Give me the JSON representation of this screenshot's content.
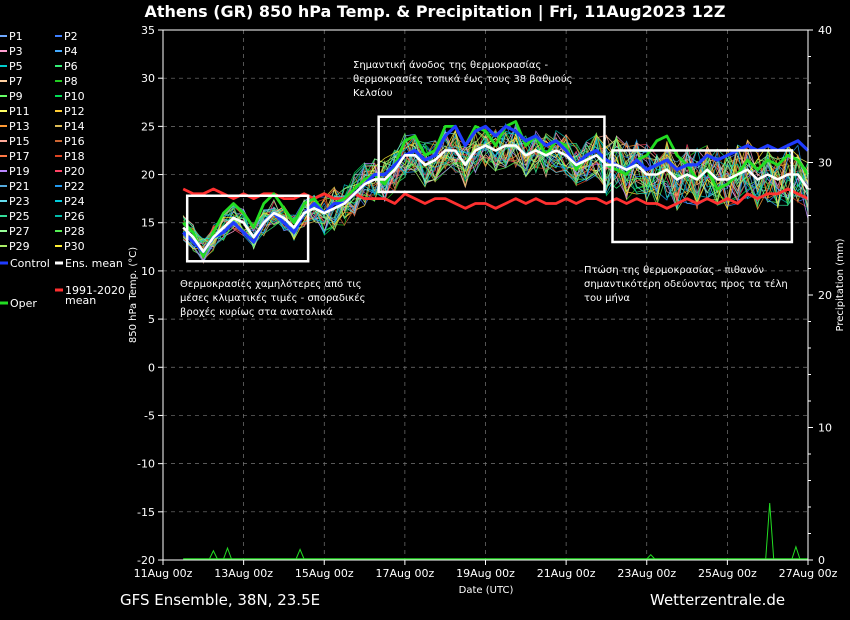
{
  "title": "Athens  (GR)  850 hPa Temp. & Precipitation | Fri, 11Aug2023 12Z",
  "footer_left": "GFS Ensemble, 38N, 23.5E",
  "footer_right": "Wetterzentrale.de",
  "colors": {
    "background": "#000000",
    "oper": "#22dd22",
    "control": "#1f3cff",
    "ens_mean": "#ffffff",
    "climate_mean": "#ff3030",
    "annotation_box": "#ffffff"
  },
  "chart_data": {
    "type": "line",
    "xlabel": "Date (UTC)",
    "ylabel": "850 hPa Temp. (°C)",
    "ylabel_right": "Precipitation (mm)",
    "ylim": [
      -20,
      35
    ],
    "ylim_right": [
      0,
      40
    ],
    "grid": true,
    "x_range_days": [
      0,
      16
    ],
    "x_ticks": [
      {
        "day": 0,
        "label": "11Aug 00z"
      },
      {
        "day": 2,
        "label": "13Aug 00z"
      },
      {
        "day": 4,
        "label": "15Aug 00z"
      },
      {
        "day": 6,
        "label": "17Aug 00z"
      },
      {
        "day": 8,
        "label": "19Aug 00z"
      },
      {
        "day": 10,
        "label": "21Aug 00z"
      },
      {
        "day": 12,
        "label": "23Aug 00z"
      },
      {
        "day": 14,
        "label": "25Aug 00z"
      },
      {
        "day": 16,
        "label": "27Aug 00z"
      }
    ],
    "y_ticks": [
      "35",
      "30",
      "25",
      "20",
      "15",
      "10",
      "5",
      "0",
      "-5",
      "-10",
      "-15",
      "-20"
    ],
    "y_ticks_right": [
      "40",
      "30",
      "20",
      "10",
      "0"
    ],
    "legend_members": [
      "P1",
      "P2",
      "P3",
      "P4",
      "P5",
      "P6",
      "P7",
      "P8",
      "P9",
      "P10",
      "P11",
      "P12",
      "P13",
      "P14",
      "P15",
      "P16",
      "P17",
      "P18",
      "P19",
      "P20",
      "P21",
      "P22",
      "P23",
      "P24",
      "P25",
      "P26",
      "P27",
      "P28",
      "P29",
      "P30"
    ],
    "member_colors": [
      "#6fa8ff",
      "#3f7fff",
      "#ff9fd0",
      "#44aaff",
      "#00cccc",
      "#33ee77",
      "#ffd0a0",
      "#22cc22",
      "#66ff66",
      "#00dd55",
      "#ffff66",
      "#ffcc33",
      "#ff9933",
      "#ddbb55",
      "#ffaa99",
      "#cc6633",
      "#ff7744",
      "#dd4422",
      "#bb88ff",
      "#ff4466",
      "#55aadd",
      "#2299ee",
      "#66ddee",
      "#00ccdd",
      "#33dd99",
      "#00bbaa",
      "#99ff99",
      "#55ee55",
      "#aaee66",
      "#ffee33"
    ],
    "legend_specials": [
      {
        "name": "Control",
        "color": "#1f3cff"
      },
      {
        "name": "Ens. mean",
        "color": "#ffffff"
      },
      {
        "name": "Oper",
        "color": "#22dd22"
      },
      {
        "name": "1991-2020 mean",
        "color": "#ff3030"
      }
    ],
    "series": [
      {
        "name": "Ens. mean",
        "x_days": [
          0.5,
          0.75,
          1,
          1.25,
          1.5,
          1.75,
          2,
          2.25,
          2.5,
          2.75,
          3,
          3.25,
          3.5,
          3.75,
          4,
          4.25,
          4.5,
          4.75,
          5,
          5.25,
          5.5,
          5.75,
          6,
          6.25,
          6.5,
          6.75,
          7,
          7.25,
          7.5,
          7.75,
          8,
          8.25,
          8.5,
          8.75,
          9,
          9.25,
          9.5,
          9.75,
          10,
          10.25,
          10.5,
          10.75,
          11,
          11.25,
          11.5,
          11.75,
          12,
          12.25,
          12.5,
          12.75,
          13,
          13.25,
          13.5,
          13.75,
          14,
          14.25,
          14.5,
          14.75,
          15,
          15.25,
          15.5,
          15.75,
          16
        ],
        "values": [
          14.5,
          13.5,
          12.0,
          13.5,
          14.5,
          15.5,
          15.0,
          13.5,
          15.0,
          16.0,
          15.5,
          14.5,
          16.0,
          16.5,
          16.0,
          16.5,
          17.0,
          18.0,
          19.0,
          19.5,
          19.5,
          20.5,
          22.0,
          22.0,
          21.0,
          21.5,
          22.5,
          22.5,
          21.0,
          22.5,
          23.0,
          22.5,
          23.0,
          23.0,
          22.0,
          22.5,
          22.0,
          22.5,
          22.0,
          21.0,
          21.5,
          22.0,
          21.0,
          21.0,
          20.5,
          21.0,
          20.0,
          20.0,
          20.5,
          19.5,
          20.0,
          19.5,
          20.5,
          19.5,
          19.5,
          20.0,
          20.5,
          19.5,
          20.0,
          19.5,
          20.0,
          20.0,
          18.5
        ]
      },
      {
        "name": "Control",
        "x_days": [
          0.5,
          0.75,
          1,
          1.25,
          1.5,
          1.75,
          2,
          2.25,
          2.5,
          2.75,
          3,
          3.25,
          3.5,
          3.75,
          4,
          4.25,
          4.5,
          4.75,
          5,
          5.25,
          5.5,
          5.75,
          6,
          6.25,
          6.5,
          6.75,
          7,
          7.25,
          7.5,
          7.75,
          8,
          8.25,
          8.5,
          8.75,
          9,
          9.25,
          9.5,
          9.75,
          10,
          10.25,
          10.5,
          10.75,
          11,
          11.25,
          11.5,
          11.75,
          12,
          12.25,
          12.5,
          12.75,
          13,
          13.25,
          13.5,
          13.75,
          14,
          14.25,
          14.5,
          14.75,
          15,
          15.25,
          15.5,
          15.75,
          16
        ],
        "values": [
          14.0,
          13.0,
          12.0,
          13.5,
          14.0,
          15.0,
          14.0,
          13.0,
          15.0,
          16.0,
          15.0,
          14.0,
          16.0,
          17.0,
          16.0,
          17.0,
          17.0,
          18.0,
          19.0,
          20.0,
          20.0,
          21.0,
          22.0,
          22.5,
          21.5,
          22.0,
          24.0,
          25.0,
          23.0,
          24.5,
          25.0,
          24.0,
          25.0,
          24.5,
          23.5,
          24.0,
          23.0,
          23.5,
          22.5,
          21.0,
          22.0,
          22.5,
          21.5,
          21.0,
          20.5,
          21.5,
          20.5,
          21.0,
          21.5,
          20.5,
          21.0,
          21.0,
          22.0,
          21.5,
          22.0,
          22.5,
          23.0,
          22.5,
          23.0,
          22.5,
          23.0,
          23.5,
          22.5
        ]
      },
      {
        "name": "Oper",
        "x_days": [
          0.5,
          0.75,
          1,
          1.25,
          1.5,
          1.75,
          2,
          2.25,
          2.5,
          2.75,
          3,
          3.25,
          3.5,
          3.75,
          4,
          4.25,
          4.5,
          4.75,
          5,
          5.25,
          5.5,
          5.75,
          6,
          6.25,
          6.5,
          6.75,
          7,
          7.25,
          7.5,
          7.75,
          8,
          8.25,
          8.5,
          8.75,
          9,
          9.25,
          9.5,
          9.75,
          10,
          10.25,
          10.5,
          10.75,
          11,
          11.25,
          11.5,
          11.75,
          12,
          12.25,
          12.5,
          12.75,
          13,
          13.25,
          13.5,
          13.75,
          14,
          14.25,
          14.5,
          14.75,
          15,
          15.25,
          15.5,
          15.75,
          16
        ],
        "values": [
          15.0,
          14.0,
          11.5,
          14.0,
          16.0,
          17.0,
          16.0,
          14.5,
          17.0,
          18.0,
          16.5,
          15.0,
          17.0,
          17.5,
          16.0,
          17.0,
          17.5,
          18.5,
          19.5,
          20.0,
          19.0,
          21.0,
          23.5,
          24.0,
          22.0,
          22.5,
          25.0,
          25.0,
          23.0,
          25.0,
          24.5,
          23.0,
          25.0,
          25.5,
          23.0,
          24.0,
          22.0,
          23.5,
          23.0,
          20.5,
          22.0,
          22.5,
          21.0,
          20.5,
          20.0,
          21.5,
          22.0,
          23.5,
          24.0,
          22.0,
          21.0,
          19.5,
          20.5,
          18.5,
          19.0,
          20.0,
          21.5,
          20.5,
          21.5,
          21.0,
          22.0,
          21.5,
          20.0
        ]
      },
      {
        "name": "1991-2020 mean",
        "x_days": [
          0.5,
          0.75,
          1,
          1.25,
          1.5,
          1.75,
          2,
          2.25,
          2.5,
          2.75,
          3,
          3.25,
          3.5,
          3.75,
          4,
          4.25,
          4.5,
          4.75,
          5,
          5.25,
          5.5,
          5.75,
          6,
          6.25,
          6.5,
          6.75,
          7,
          7.25,
          7.5,
          7.75,
          8,
          8.25,
          8.5,
          8.75,
          9,
          9.25,
          9.5,
          9.75,
          10,
          10.25,
          10.5,
          10.75,
          11,
          11.25,
          11.5,
          11.75,
          12,
          12.25,
          12.5,
          12.75,
          13,
          13.25,
          13.5,
          13.75,
          14,
          14.25,
          14.5,
          14.75,
          15,
          15.25,
          15.5,
          15.75,
          16
        ],
        "values": [
          18.5,
          18.0,
          18.0,
          18.5,
          18.0,
          17.5,
          18.0,
          17.5,
          18.0,
          18.0,
          17.5,
          17.5,
          18.0,
          17.5,
          18.0,
          17.5,
          17.5,
          18.0,
          17.5,
          17.5,
          17.5,
          17.0,
          18.0,
          17.5,
          17.0,
          17.5,
          17.5,
          17.0,
          16.5,
          17.0,
          17.0,
          16.5,
          17.0,
          17.5,
          17.0,
          17.5,
          17.0,
          17.0,
          17.5,
          17.0,
          17.5,
          17.5,
          17.0,
          17.5,
          17.0,
          17.5,
          17.0,
          17.0,
          16.5,
          17.0,
          17.5,
          17.0,
          17.5,
          17.0,
          17.5,
          17.0,
          18.0,
          17.5,
          18.0,
          18.0,
          18.5,
          18.0,
          17.5
        ]
      }
    ],
    "precipitation_peaks_mm": [
      {
        "day": 1.25,
        "value": 0.7
      },
      {
        "day": 1.6,
        "value": 0.9
      },
      {
        "day": 3.4,
        "value": 0.8
      },
      {
        "day": 12.1,
        "value": 0.4
      },
      {
        "day": 15.05,
        "value": 4.3
      },
      {
        "day": 15.7,
        "value": 1.0
      }
    ],
    "annotations": [
      {
        "id": "ann-early",
        "lines": [
          "Θερμοκρασίες χαμηλότερες από τις",
          "μέσες κλιματικές τιμές - σποραδικές",
          "βροχές κυρίως στα ανατολικά"
        ],
        "box_days": [
          0.6,
          3.6
        ],
        "box_temp": [
          11.0,
          17.8
        ]
      },
      {
        "id": "ann-mid",
        "lines": [
          "Σημαντική άνοδος της θερμοκρασίας -",
          "θερμοκρασίες τοπικά έως τους 38 βαθμούς",
          "Κελσίου"
        ],
        "box_days": [
          5.35,
          10.95
        ],
        "box_temp": [
          18.2,
          26.0
        ]
      },
      {
        "id": "ann-late",
        "lines": [
          "Πτώση της θερμοκρασίας - πιθανόν",
          "σημαντικότερη οδεύοντας προς τα τέλη",
          "του μήνα"
        ],
        "box_days": [
          11.15,
          15.6
        ],
        "box_temp": [
          13.0,
          22.5
        ]
      }
    ]
  }
}
